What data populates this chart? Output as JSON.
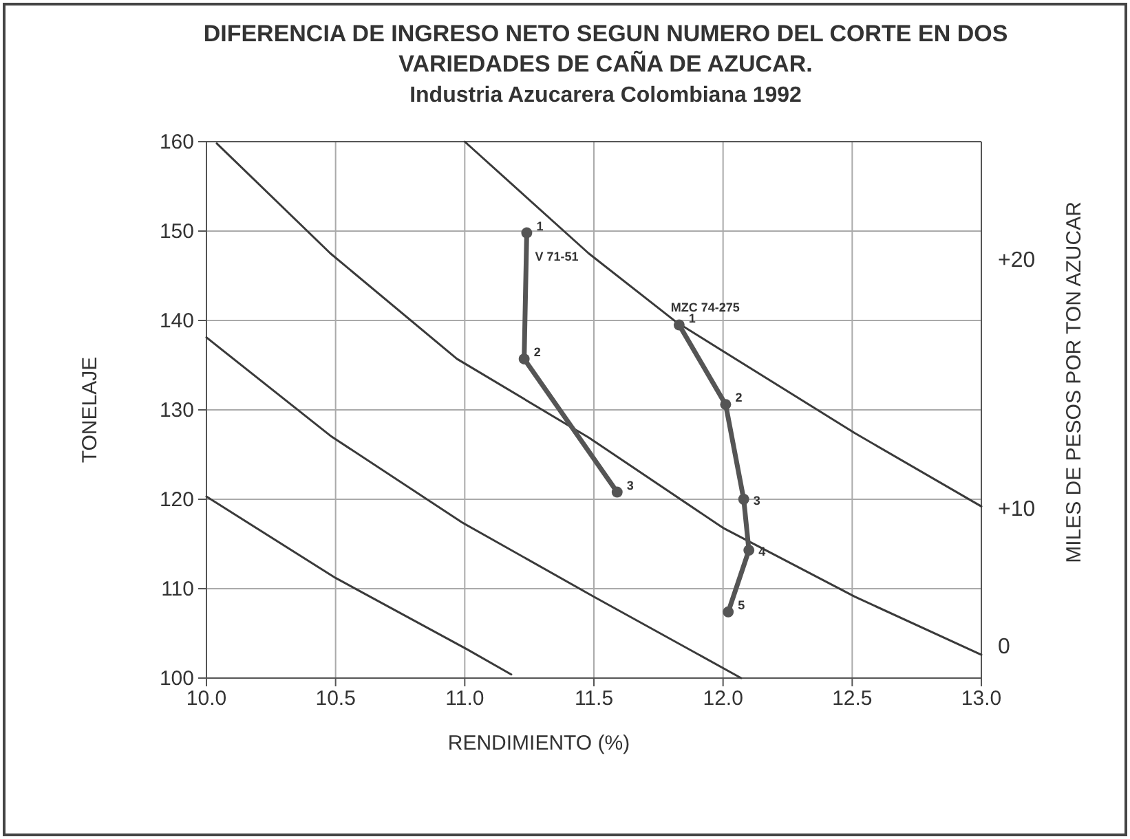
{
  "chart_data": {
    "type": "line",
    "title": "DIFERENCIA DE INGRESO NETO SEGUN NUMERO DEL CORTE EN DOS\nVARIEDADES DE CAÑA DE AZUCAR.",
    "subtitle": "Industria Azucarera Colombiana 1992",
    "xlabel": "RENDIMIENTO (%)",
    "ylabel": "TONELAJE",
    "y2label": "MILES DE PESOS POR TON AZUCAR",
    "xlim": [
      10,
      13
    ],
    "ylim": [
      100,
      160
    ],
    "xticks": [
      {
        "value": 10,
        "label": "10.0"
      },
      10.5,
      {
        "value": 11,
        "label": "11.0"
      },
      11.5,
      {
        "value": 12,
        "label": "12.0"
      },
      12.5,
      {
        "value": 13,
        "label": "13.0"
      }
    ],
    "yticks": [
      100,
      110,
      120,
      130,
      140,
      150,
      160
    ],
    "grid": true,
    "series": [
      {
        "color": "#3a3a3a",
        "marker": "none",
        "x": [
          11.0,
          11.48,
          11.82,
          12.51,
          13.0
        ],
        "values": [
          160,
          147.5,
          139.8,
          127.4,
          119.2
        ]
      },
      {
        "color": "#3a3a3a",
        "marker": "none",
        "x": [
          10.04,
          10.48,
          10.97,
          11.48,
          12.0,
          12.51,
          13.0
        ],
        "values": [
          159.8,
          147.5,
          135.7,
          126.9,
          116.8,
          109.1,
          102.6
        ]
      },
      {
        "color": "#3a3a3a",
        "marker": "none",
        "x": [
          10.0,
          10.48,
          10.99,
          11.5,
          12.07
        ],
        "values": [
          138.1,
          127.1,
          117.4,
          109.1,
          100
        ]
      },
      {
        "color": "#3a3a3a",
        "marker": "none",
        "x": [
          10.0,
          10.5,
          11.01,
          11.18
        ],
        "values": [
          120.3,
          111.2,
          103.2,
          100.4
        ]
      },
      {
        "name": "V 71-51",
        "color": "#555555",
        "marker": "circle",
        "x": [
          11.24,
          11.23,
          11.59
        ],
        "values": [
          149.8,
          135.7,
          120.8
        ]
      },
      {
        "name": "MZC 74-275",
        "color": "#555555",
        "marker": "circle",
        "x": [
          11.83,
          12.01,
          12.08,
          12.1,
          12.02
        ],
        "values": [
          139.5,
          130.6,
          120,
          114.3,
          107.4
        ]
      }
    ],
    "annotations": [
      "+20",
      "+10",
      "0",
      {
        "text": "1",
        "x": 11.24,
        "y": 149.8
      },
      {
        "text": "2",
        "x": 11.23,
        "y": 135.7
      },
      {
        "text": "3",
        "x": 11.59,
        "y": 120.8
      },
      {
        "text": "1",
        "x": 11.83,
        "y": 139.5
      },
      {
        "text": "2",
        "x": 12.01,
        "y": 130.6
      },
      {
        "text": "3",
        "x": 12.08,
        "y": 120
      },
      {
        "text": "4",
        "x": 12.1,
        "y": 114.3
      },
      {
        "text": "5",
        "x": 12.02,
        "y": 107.4
      }
    ]
  }
}
